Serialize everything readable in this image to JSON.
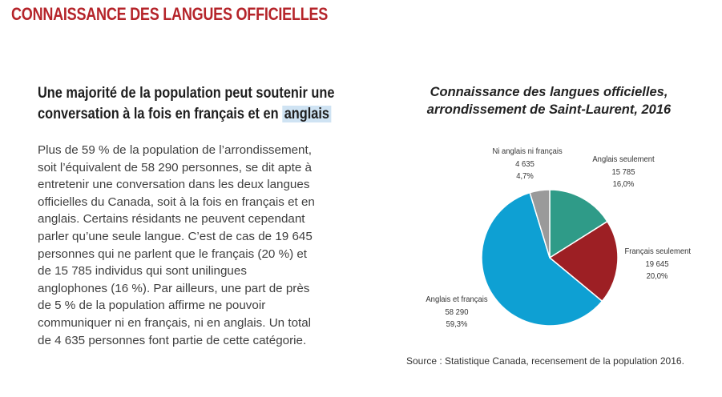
{
  "section_title": "CONNAISSANCE DES LANGUES OFFICIELLES",
  "subheading": {
    "text_before": "Une majorité de la population peut soutenir une conversation à la fois en français et en ",
    "highlight": "anglais"
  },
  "body_text": "Plus de 59 % de la population de l’arrondissement, soit l’équivalent de 58 290 personnes, se dit apte à entretenir une conversation dans les deux langues officielles du Canada, soit à la fois en français et en anglais. Certains résidants ne peuvent cependant parler qu’une seule langue. C’est de cas de 19 645 personnes qui ne parlent que le français (20 %) et de 15 785 individus qui sont unilingues anglophones (16 %). Par ailleurs, une part de près de 5 % de la population affirme ne pouvoir communiquer ni en français, ni en anglais. Un total de 4 635 personnes font partie de cette catégorie.",
  "chart_data": {
    "type": "pie",
    "title_lines": [
      "Connaissance des langues officielles,",
      "arrondissement de Saint-Laurent, 2016"
    ],
    "slices": [
      {
        "name": "Anglais seulement",
        "value": 15785,
        "percent_label": "16,0%",
        "value_label": "15 785",
        "color": "#2f9b88"
      },
      {
        "name": "Français seulement",
        "value": 19645,
        "percent_label": "20,0%",
        "value_label": "19 645",
        "color": "#9d1f24"
      },
      {
        "name": "Anglais et français",
        "value": 58290,
        "percent_label": "59,3%",
        "value_label": "58 290",
        "color": "#0ea0d3"
      },
      {
        "name": "Ni anglais ni français",
        "value": 4635,
        "percent_label": "4,7%",
        "value_label": "4 635",
        "color": "#9a9a9a"
      }
    ],
    "start": "12 o'clock, clockwise"
  },
  "source": "Source : Statistique Canada, recensement de la population 2016."
}
